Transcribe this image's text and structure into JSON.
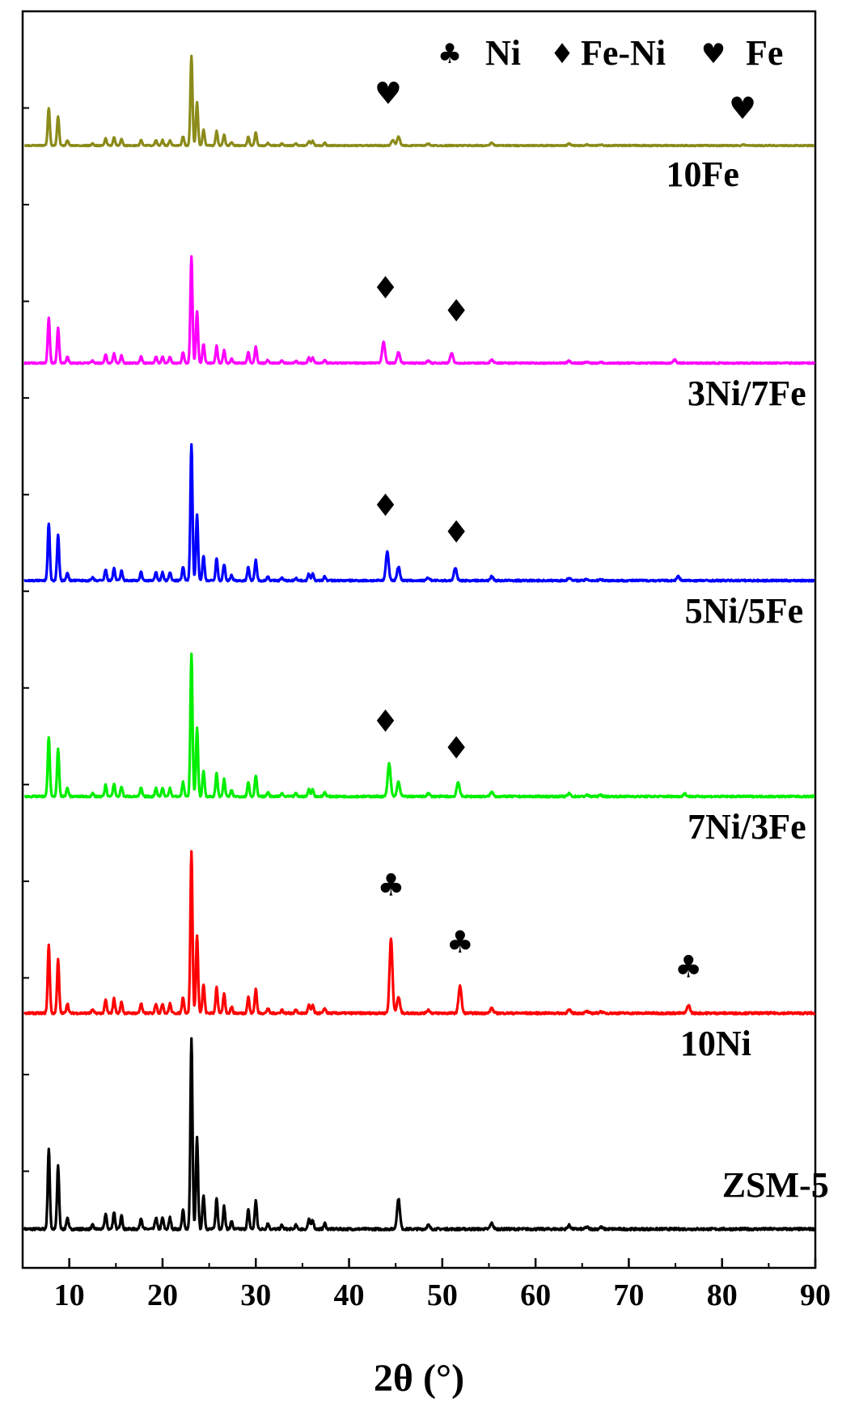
{
  "chart_data": {
    "type": "line",
    "title": "",
    "xlabel": "2θ (°)",
    "ylabel": "",
    "xlim": [
      5,
      90
    ],
    "x_ticks": [
      10,
      20,
      30,
      40,
      50,
      60,
      70,
      80,
      90
    ],
    "grid": false,
    "legend": {
      "placement": "top-right",
      "entries": [
        {
          "symbol": "♣",
          "label": "Ni"
        },
        {
          "symbol": "♦",
          "label": "Fe-Ni"
        },
        {
          "symbol": "♥",
          "label": "Fe"
        }
      ]
    },
    "base_pattern": [
      [
        7.8,
        0.42
      ],
      [
        8.8,
        0.33
      ],
      [
        9.8,
        0.06
      ],
      [
        12.5,
        0.02
      ],
      [
        13.9,
        0.08
      ],
      [
        14.8,
        0.09
      ],
      [
        15.6,
        0.07
      ],
      [
        17.7,
        0.06
      ],
      [
        19.3,
        0.06
      ],
      [
        20.0,
        0.06
      ],
      [
        20.8,
        0.06
      ],
      [
        22.2,
        0.1
      ],
      [
        23.1,
        1.0
      ],
      [
        23.7,
        0.48
      ],
      [
        24.4,
        0.18
      ],
      [
        25.8,
        0.16
      ],
      [
        26.6,
        0.12
      ],
      [
        27.4,
        0.04
      ],
      [
        29.2,
        0.1
      ],
      [
        30.0,
        0.15
      ],
      [
        31.3,
        0.03
      ],
      [
        32.8,
        0.02
      ],
      [
        34.3,
        0.02
      ],
      [
        35.7,
        0.05
      ],
      [
        36.1,
        0.05
      ],
      [
        37.4,
        0.03
      ],
      [
        45.3,
        0.1
      ],
      [
        48.5,
        0.02
      ],
      [
        55.3,
        0.03
      ],
      [
        63.6,
        0.02
      ],
      [
        65.5,
        0.01
      ],
      [
        67.0,
        0.01
      ]
    ],
    "series": [
      {
        "name": "ZSM-5",
        "color": "#000000",
        "scale": 1.0,
        "extra_peaks": [
          [
            45.3,
            0.06
          ]
        ],
        "markers": [],
        "label_x": 80.0
      },
      {
        "name": "10Ni",
        "color": "#ff0000",
        "scale": 0.85,
        "extra_peaks": [
          [
            44.5,
            0.46
          ],
          [
            51.9,
            0.17
          ],
          [
            76.4,
            0.05
          ]
        ],
        "markers": [
          {
            "symbol": "♣",
            "x": 44.5,
            "h": 0.62
          },
          {
            "symbol": "♣",
            "x": 51.9,
            "h": 0.32
          },
          {
            "symbol": "♣",
            "x": 76.4,
            "h": 0.19
          }
        ],
        "label_x": 75.5
      },
      {
        "name": "7Ni/3Fe",
        "color": "#00ee00",
        "scale": 0.75,
        "extra_peaks": [
          [
            44.3,
            0.23
          ],
          [
            51.7,
            0.1
          ],
          [
            76.0,
            0.02
          ]
        ],
        "markers": [
          {
            "symbol": "♦",
            "x": 43.9,
            "h": 0.34
          },
          {
            "symbol": "♦",
            "x": 51.5,
            "h": 0.2
          }
        ],
        "label_x": 76.3
      },
      {
        "name": "5Ni/5Fe",
        "color": "#0000ff",
        "scale": 0.72,
        "extra_peaks": [
          [
            44.1,
            0.21
          ],
          [
            51.4,
            0.09
          ],
          [
            75.3,
            0.03
          ]
        ],
        "markers": [
          {
            "symbol": "♦",
            "x": 43.9,
            "h": 0.34
          },
          {
            "symbol": "♦",
            "x": 51.5,
            "h": 0.2
          }
        ],
        "label_x": 76.0
      },
      {
        "name": "3Ni/7Fe",
        "color": "#ff00ff",
        "scale": 0.56,
        "extra_peaks": [
          [
            43.7,
            0.2
          ],
          [
            51.0,
            0.09
          ],
          [
            74.9,
            0.03
          ]
        ],
        "markers": [
          {
            "symbol": "♦",
            "x": 43.9,
            "h": 0.34
          },
          {
            "symbol": "♦",
            "x": 51.5,
            "h": 0.22
          }
        ],
        "label_x": 76.3
      },
      {
        "name": "10Fe",
        "color": "#8b8b1a",
        "scale": 0.47,
        "extra_peaks": [
          [
            44.7,
            0.06
          ],
          [
            82.3,
            0.01
          ]
        ],
        "markers": [
          {
            "symbol": "♥",
            "x": 44.2,
            "h": 0.22
          },
          {
            "symbol": "♥",
            "x": 82.2,
            "h": 0.14
          }
        ],
        "label_x": 74.0
      }
    ]
  }
}
